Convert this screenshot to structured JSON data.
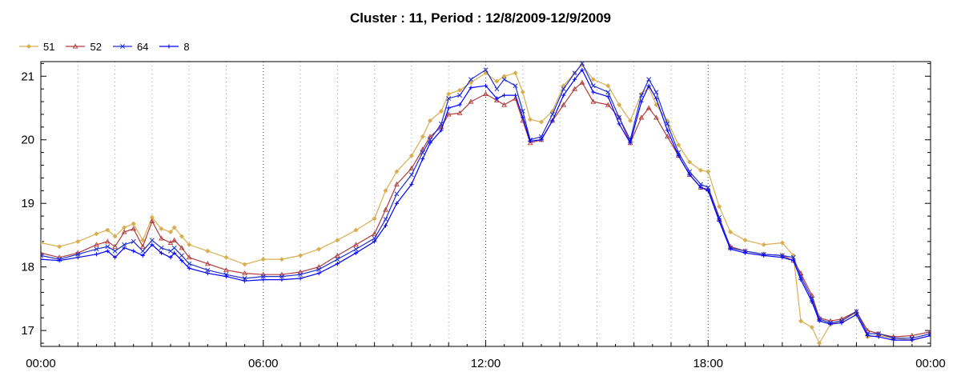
{
  "chart_data": {
    "type": "line",
    "title": "Cluster : 11, Period : 12/8/2009-12/9/2009",
    "xlabel": "",
    "ylabel": "",
    "x_unit": "hours",
    "xlim": [
      0,
      24
    ],
    "ylim": [
      16.75,
      21.23
    ],
    "x_ticks": [
      0,
      6,
      12,
      18,
      24
    ],
    "x_tick_labels": [
      "00:00",
      "06:00",
      "12:00",
      "18:00",
      "00:00"
    ],
    "y_ticks": [
      17,
      18,
      19,
      20,
      21
    ],
    "y_tick_labels": [
      "17",
      "18",
      "19",
      "20",
      "21"
    ],
    "grid": "vertical dotted",
    "legend_position": "top-left",
    "series": [
      {
        "name": "51",
        "color": "#D9AE4F",
        "marker": "diamond",
        "points": [
          [
            0.0,
            18.38
          ],
          [
            0.5,
            18.32
          ],
          [
            1.0,
            18.4
          ],
          [
            1.5,
            18.52
          ],
          [
            1.8,
            18.58
          ],
          [
            2.0,
            18.48
          ],
          [
            2.25,
            18.62
          ],
          [
            2.5,
            18.68
          ],
          [
            2.75,
            18.42
          ],
          [
            3.0,
            18.78
          ],
          [
            3.25,
            18.6
          ],
          [
            3.5,
            18.55
          ],
          [
            3.6,
            18.62
          ],
          [
            3.8,
            18.48
          ],
          [
            4.0,
            18.35
          ],
          [
            4.5,
            18.25
          ],
          [
            5.0,
            18.15
          ],
          [
            5.5,
            18.04
          ],
          [
            6.0,
            18.12
          ],
          [
            6.5,
            18.12
          ],
          [
            7.0,
            18.18
          ],
          [
            7.5,
            18.28
          ],
          [
            8.0,
            18.42
          ],
          [
            8.5,
            18.58
          ],
          [
            9.0,
            18.76
          ],
          [
            9.3,
            19.2
          ],
          [
            9.6,
            19.5
          ],
          [
            10.0,
            19.75
          ],
          [
            10.3,
            20.05
          ],
          [
            10.5,
            20.3
          ],
          [
            10.8,
            20.45
          ],
          [
            11.0,
            20.72
          ],
          [
            11.3,
            20.78
          ],
          [
            11.6,
            20.9
          ],
          [
            12.0,
            21.05
          ],
          [
            12.3,
            20.92
          ],
          [
            12.5,
            21.0
          ],
          [
            12.8,
            21.05
          ],
          [
            13.0,
            20.75
          ],
          [
            13.2,
            20.32
          ],
          [
            13.5,
            20.28
          ],
          [
            13.8,
            20.45
          ],
          [
            14.1,
            20.85
          ],
          [
            14.4,
            21.05
          ],
          [
            14.6,
            21.18
          ],
          [
            14.9,
            20.95
          ],
          [
            15.3,
            20.85
          ],
          [
            15.6,
            20.55
          ],
          [
            15.9,
            20.3
          ],
          [
            16.2,
            20.72
          ],
          [
            16.4,
            20.82
          ],
          [
            16.6,
            20.55
          ],
          [
            16.9,
            20.3
          ],
          [
            17.2,
            19.92
          ],
          [
            17.5,
            19.65
          ],
          [
            17.8,
            19.52
          ],
          [
            18.0,
            19.5
          ],
          [
            18.3,
            18.95
          ],
          [
            18.6,
            18.55
          ],
          [
            19.0,
            18.42
          ],
          [
            19.5,
            18.35
          ],
          [
            20.0,
            18.38
          ],
          [
            20.3,
            18.18
          ],
          [
            20.5,
            17.15
          ],
          [
            20.8,
            17.05
          ],
          [
            21.0,
            16.8
          ],
          [
            21.3,
            17.1
          ],
          [
            21.6,
            17.15
          ],
          [
            22.0,
            17.28
          ],
          [
            22.3,
            16.9
          ],
          [
            22.6,
            16.92
          ],
          [
            23.0,
            16.88
          ],
          [
            23.5,
            16.85
          ],
          [
            24.0,
            16.92
          ]
        ]
      },
      {
        "name": "52",
        "color": "#B33A3A",
        "marker": "triangle",
        "points": [
          [
            0.0,
            18.22
          ],
          [
            0.5,
            18.15
          ],
          [
            1.0,
            18.22
          ],
          [
            1.5,
            18.35
          ],
          [
            1.8,
            18.4
          ],
          [
            2.0,
            18.32
          ],
          [
            2.25,
            18.55
          ],
          [
            2.5,
            18.6
          ],
          [
            2.75,
            18.32
          ],
          [
            3.0,
            18.72
          ],
          [
            3.25,
            18.45
          ],
          [
            3.5,
            18.38
          ],
          [
            3.6,
            18.42
          ],
          [
            3.8,
            18.3
          ],
          [
            4.0,
            18.15
          ],
          [
            4.5,
            18.05
          ],
          [
            5.0,
            17.95
          ],
          [
            5.5,
            17.9
          ],
          [
            6.0,
            17.88
          ],
          [
            6.5,
            17.88
          ],
          [
            7.0,
            17.92
          ],
          [
            7.5,
            18.0
          ],
          [
            8.0,
            18.18
          ],
          [
            8.5,
            18.35
          ],
          [
            9.0,
            18.52
          ],
          [
            9.3,
            18.9
          ],
          [
            9.6,
            19.3
          ],
          [
            10.0,
            19.55
          ],
          [
            10.3,
            19.85
          ],
          [
            10.5,
            20.05
          ],
          [
            10.8,
            20.2
          ],
          [
            11.0,
            20.4
          ],
          [
            11.3,
            20.42
          ],
          [
            11.6,
            20.6
          ],
          [
            12.0,
            20.72
          ],
          [
            12.3,
            20.62
          ],
          [
            12.5,
            20.55
          ],
          [
            12.8,
            20.65
          ],
          [
            13.0,
            20.3
          ],
          [
            13.2,
            19.95
          ],
          [
            13.5,
            20.0
          ],
          [
            13.8,
            20.3
          ],
          [
            14.1,
            20.55
          ],
          [
            14.4,
            20.8
          ],
          [
            14.6,
            20.9
          ],
          [
            14.9,
            20.6
          ],
          [
            15.3,
            20.55
          ],
          [
            15.6,
            20.35
          ],
          [
            15.9,
            19.95
          ],
          [
            16.2,
            20.35
          ],
          [
            16.4,
            20.5
          ],
          [
            16.6,
            20.35
          ],
          [
            16.9,
            20.05
          ],
          [
            17.2,
            19.75
          ],
          [
            17.5,
            19.45
          ],
          [
            17.8,
            19.25
          ],
          [
            18.0,
            19.22
          ],
          [
            18.3,
            18.75
          ],
          [
            18.6,
            18.32
          ],
          [
            19.0,
            18.25
          ],
          [
            19.5,
            18.2
          ],
          [
            20.0,
            18.18
          ],
          [
            20.3,
            18.1
          ],
          [
            20.5,
            17.9
          ],
          [
            20.8,
            17.55
          ],
          [
            21.0,
            17.2
          ],
          [
            21.3,
            17.15
          ],
          [
            21.6,
            17.18
          ],
          [
            22.0,
            17.3
          ],
          [
            22.3,
            17.0
          ],
          [
            22.6,
            16.95
          ],
          [
            23.0,
            16.9
          ],
          [
            23.5,
            16.92
          ],
          [
            24.0,
            16.98
          ]
        ]
      },
      {
        "name": "64",
        "color": "#1F2FD0",
        "marker": "x",
        "points": [
          [
            0.0,
            18.18
          ],
          [
            0.5,
            18.12
          ],
          [
            1.0,
            18.2
          ],
          [
            1.5,
            18.28
          ],
          [
            1.8,
            18.32
          ],
          [
            2.0,
            18.25
          ],
          [
            2.25,
            18.35
          ],
          [
            2.5,
            18.4
          ],
          [
            2.75,
            18.25
          ],
          [
            3.0,
            18.42
          ],
          [
            3.25,
            18.3
          ],
          [
            3.5,
            18.25
          ],
          [
            3.6,
            18.3
          ],
          [
            3.8,
            18.18
          ],
          [
            4.0,
            18.05
          ],
          [
            4.5,
            17.95
          ],
          [
            5.0,
            17.88
          ],
          [
            5.5,
            17.82
          ],
          [
            6.0,
            17.85
          ],
          [
            6.5,
            17.85
          ],
          [
            7.0,
            17.88
          ],
          [
            7.5,
            17.96
          ],
          [
            8.0,
            18.12
          ],
          [
            8.5,
            18.28
          ],
          [
            9.0,
            18.45
          ],
          [
            9.3,
            18.75
          ],
          [
            9.6,
            19.15
          ],
          [
            10.0,
            19.45
          ],
          [
            10.3,
            19.8
          ],
          [
            10.5,
            20.0
          ],
          [
            10.8,
            20.25
          ],
          [
            11.0,
            20.65
          ],
          [
            11.3,
            20.7
          ],
          [
            11.6,
            20.95
          ],
          [
            12.0,
            21.1
          ],
          [
            12.3,
            20.8
          ],
          [
            12.5,
            20.95
          ],
          [
            12.8,
            20.85
          ],
          [
            13.0,
            20.45
          ],
          [
            13.2,
            20.0
          ],
          [
            13.5,
            20.05
          ],
          [
            13.8,
            20.4
          ],
          [
            14.1,
            20.8
          ],
          [
            14.4,
            21.05
          ],
          [
            14.6,
            21.2
          ],
          [
            14.9,
            20.85
          ],
          [
            15.3,
            20.75
          ],
          [
            15.6,
            20.35
          ],
          [
            15.9,
            20.0
          ],
          [
            16.2,
            20.7
          ],
          [
            16.4,
            20.95
          ],
          [
            16.6,
            20.75
          ],
          [
            16.9,
            20.25
          ],
          [
            17.2,
            19.8
          ],
          [
            17.5,
            19.5
          ],
          [
            17.8,
            19.3
          ],
          [
            18.0,
            19.25
          ],
          [
            18.3,
            18.78
          ],
          [
            18.6,
            18.3
          ],
          [
            19.0,
            18.25
          ],
          [
            19.5,
            18.2
          ],
          [
            20.0,
            18.18
          ],
          [
            20.3,
            18.15
          ],
          [
            20.5,
            17.85
          ],
          [
            20.8,
            17.5
          ],
          [
            21.0,
            17.18
          ],
          [
            21.3,
            17.12
          ],
          [
            21.6,
            17.15
          ],
          [
            22.0,
            17.3
          ],
          [
            22.3,
            16.95
          ],
          [
            22.6,
            16.95
          ],
          [
            23.0,
            16.88
          ],
          [
            23.5,
            16.88
          ],
          [
            24.0,
            16.95
          ]
        ]
      },
      {
        "name": "8",
        "color": "#0000FF",
        "marker": "plus",
        "points": [
          [
            0.0,
            18.12
          ],
          [
            0.5,
            18.1
          ],
          [
            1.0,
            18.15
          ],
          [
            1.5,
            18.2
          ],
          [
            1.8,
            18.25
          ],
          [
            2.0,
            18.15
          ],
          [
            2.25,
            18.3
          ],
          [
            2.5,
            18.25
          ],
          [
            2.75,
            18.18
          ],
          [
            3.0,
            18.35
          ],
          [
            3.25,
            18.22
          ],
          [
            3.5,
            18.15
          ],
          [
            3.6,
            18.22
          ],
          [
            3.8,
            18.1
          ],
          [
            4.0,
            17.98
          ],
          [
            4.5,
            17.9
          ],
          [
            5.0,
            17.85
          ],
          [
            5.5,
            17.78
          ],
          [
            6.0,
            17.8
          ],
          [
            6.5,
            17.8
          ],
          [
            7.0,
            17.82
          ],
          [
            7.5,
            17.9
          ],
          [
            8.0,
            18.05
          ],
          [
            8.5,
            18.22
          ],
          [
            9.0,
            18.4
          ],
          [
            9.3,
            18.65
          ],
          [
            9.6,
            19.0
          ],
          [
            10.0,
            19.3
          ],
          [
            10.3,
            19.7
          ],
          [
            10.5,
            19.95
          ],
          [
            10.8,
            20.15
          ],
          [
            11.0,
            20.5
          ],
          [
            11.3,
            20.55
          ],
          [
            11.6,
            20.82
          ],
          [
            12.0,
            20.85
          ],
          [
            12.3,
            20.65
          ],
          [
            12.5,
            20.7
          ],
          [
            12.8,
            20.7
          ],
          [
            13.0,
            20.35
          ],
          [
            13.2,
            19.98
          ],
          [
            13.5,
            20.0
          ],
          [
            13.8,
            20.3
          ],
          [
            14.1,
            20.7
          ],
          [
            14.4,
            20.95
          ],
          [
            14.6,
            21.1
          ],
          [
            14.9,
            20.75
          ],
          [
            15.3,
            20.68
          ],
          [
            15.6,
            20.25
          ],
          [
            15.9,
            19.95
          ],
          [
            16.2,
            20.6
          ],
          [
            16.4,
            20.85
          ],
          [
            16.6,
            20.65
          ],
          [
            16.9,
            20.15
          ],
          [
            17.2,
            19.75
          ],
          [
            17.5,
            19.45
          ],
          [
            17.8,
            19.25
          ],
          [
            18.0,
            19.2
          ],
          [
            18.3,
            18.72
          ],
          [
            18.6,
            18.28
          ],
          [
            19.0,
            18.22
          ],
          [
            19.5,
            18.18
          ],
          [
            20.0,
            18.15
          ],
          [
            20.3,
            18.1
          ],
          [
            20.5,
            17.8
          ],
          [
            20.8,
            17.45
          ],
          [
            21.0,
            17.15
          ],
          [
            21.3,
            17.1
          ],
          [
            21.6,
            17.12
          ],
          [
            22.0,
            17.25
          ],
          [
            22.3,
            16.92
          ],
          [
            22.6,
            16.9
          ],
          [
            23.0,
            16.85
          ],
          [
            23.5,
            16.85
          ],
          [
            24.0,
            16.92
          ]
        ]
      }
    ]
  }
}
